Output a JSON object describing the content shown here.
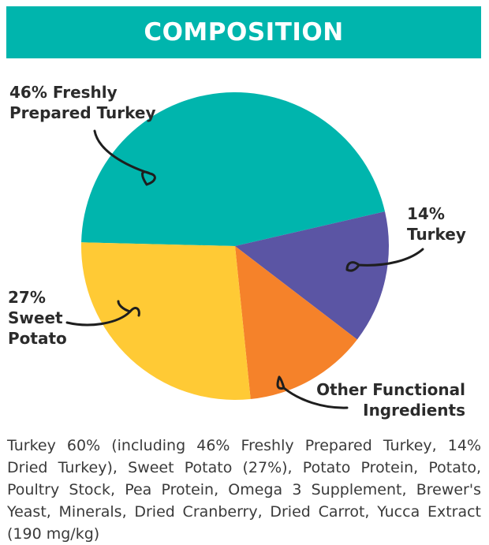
{
  "header": {
    "title": "COMPOSITION"
  },
  "chart_data": {
    "type": "pie",
    "slices": [
      {
        "label_lines": [
          "46% Freshly",
          "Prepared Turkey"
        ],
        "value": 46,
        "color": "#00B5AD"
      },
      {
        "label_lines": [
          "14%",
          "Turkey"
        ],
        "value": 14,
        "color": "#5B55A4"
      },
      {
        "label_lines": [
          "Other Functional",
          "Ingredients"
        ],
        "value": 13,
        "color": "#F5822A"
      },
      {
        "label_lines": [
          "27%",
          "Sweet",
          "Potato"
        ],
        "value": 27,
        "color": "#FFCA35"
      }
    ]
  },
  "composition_text": "Turkey 60% (including 46% Freshly Prepared Turkey, 14% Dried Turkey), Sweet Potato (27%), Potato Protein, Potato, Poultry Stock, Pea Protein, Omega 3 Supplement, Brewer's Yeast, Minerals, Dried Cranberry, Dried Carrot, Yucca Extract (190 mg/kg)"
}
